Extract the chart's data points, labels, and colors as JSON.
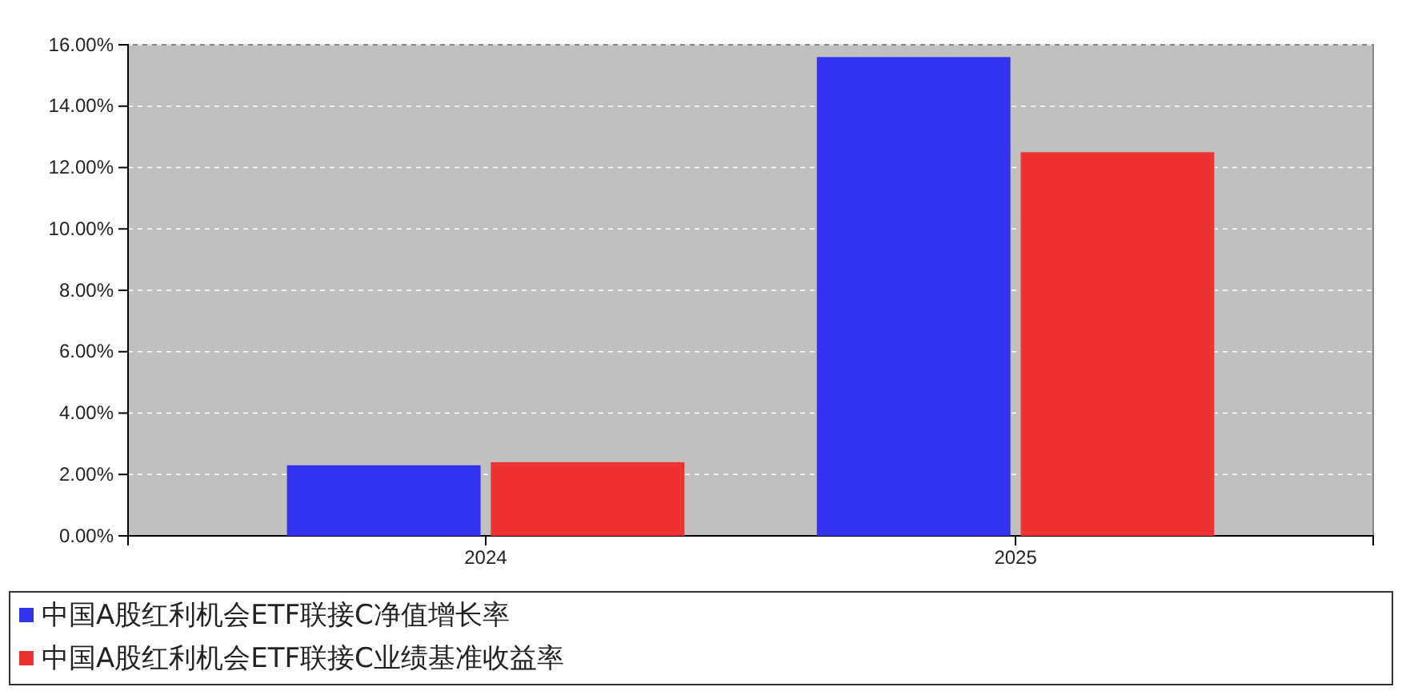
{
  "chart_data": {
    "type": "bar",
    "categories": [
      "2024",
      "2025"
    ],
    "series": [
      {
        "name": "中国A股红利机会ETF联接C净值增长率",
        "color": "#3333ee",
        "values": [
          2.3,
          15.6
        ]
      },
      {
        "name": "中国A股红利机会ETF联接C业绩基准收益率",
        "color": "#ee3333",
        "values": [
          2.4,
          12.5
        ]
      }
    ],
    "ylim": [
      0,
      16
    ],
    "yticks": [
      {
        "value": 0,
        "label": "0.00%"
      },
      {
        "value": 2,
        "label": "2.00%"
      },
      {
        "value": 4,
        "label": "4.00%"
      },
      {
        "value": 6,
        "label": "6.00%"
      },
      {
        "value": 8,
        "label": "8.00%"
      },
      {
        "value": 10,
        "label": "10.00%"
      },
      {
        "value": 12,
        "label": "12.00%"
      },
      {
        "value": 14,
        "label": "14.00%"
      },
      {
        "value": 16,
        "label": "16.00%"
      }
    ],
    "grid": true,
    "legend": "bottom"
  }
}
